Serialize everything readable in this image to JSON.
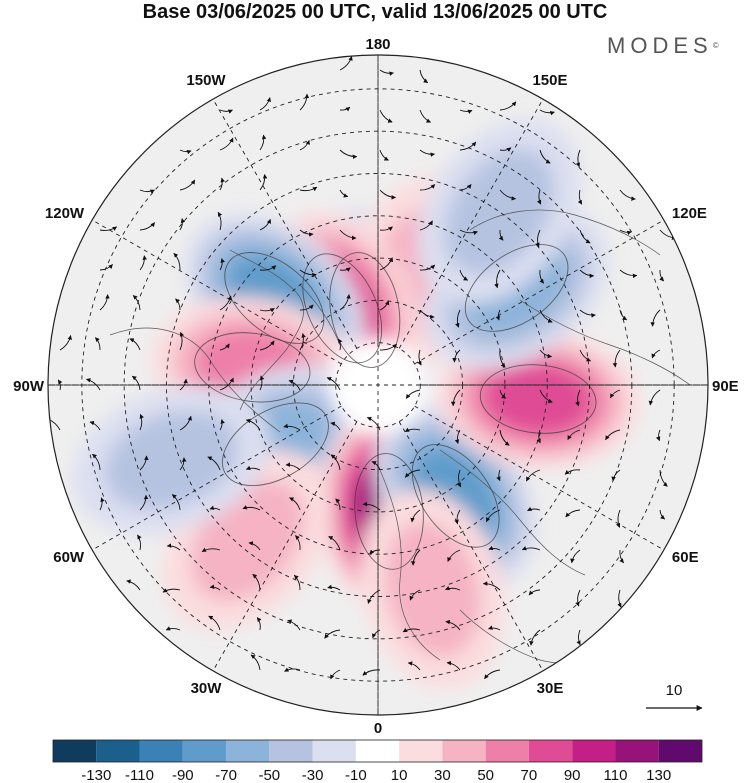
{
  "title": "Base 03/06/2025 00 UTC, valid 13/06/2025 00 UTC",
  "logo": "MODES",
  "logo_mark": "©",
  "longitude_labels": [
    {
      "text": "180",
      "lon": 180
    },
    {
      "text": "150E",
      "lon": 150
    },
    {
      "text": "120E",
      "lon": 120
    },
    {
      "text": "90E",
      "lon": 90
    },
    {
      "text": "60E",
      "lon": 60
    },
    {
      "text": "30E",
      "lon": 30
    },
    {
      "text": "0",
      "lon": 0
    },
    {
      "text": "30W",
      "lon": -30
    },
    {
      "text": "60W",
      "lon": -60
    },
    {
      "text": "90W",
      "lon": -90
    },
    {
      "text": "120W",
      "lon": -120
    },
    {
      "text": "150W",
      "lon": -150
    }
  ],
  "vector_reference_label": "10",
  "colorbar": {
    "ticks": [
      "-130",
      "-110",
      "-90",
      "-70",
      "-50",
      "-30",
      "-10",
      "10",
      "30",
      "50",
      "70",
      "90",
      "110",
      "130"
    ],
    "colors": [
      "#0e3b5e",
      "#1b5f8d",
      "#3a82b5",
      "#5f9ccb",
      "#8cb3da",
      "#b5c3e1",
      "#dcdff0",
      "#ffffff",
      "#fbdddf",
      "#f5b3c3",
      "#ee7fa8",
      "#e04b95",
      "#c41f86",
      "#971279",
      "#600a6d"
    ]
  },
  "anomaly_centers": [
    {
      "lat": 72,
      "lon": -170,
      "value": -55
    },
    {
      "lat": 62,
      "lon": 160,
      "value": 30
    },
    {
      "lat": 70,
      "lon": -155,
      "value": 70
    },
    {
      "lat": 58,
      "lon": -130,
      "value": -70
    },
    {
      "lat": 60,
      "lon": -98,
      "value": 55
    },
    {
      "lat": 62,
      "lon": -60,
      "value": -50
    },
    {
      "lat": 60,
      "lon": 5,
      "value": 110
    },
    {
      "lat": 58,
      "lon": 35,
      "value": -60
    },
    {
      "lat": 52,
      "lon": 85,
      "value": 60
    },
    {
      "lat": 50,
      "lon": 125,
      "value": -55
    },
    {
      "lat": 42,
      "lon": -40,
      "value": 25
    },
    {
      "lat": 40,
      "lon": 15,
      "value": 35
    },
    {
      "lat": 38,
      "lon": -70,
      "value": -30
    },
    {
      "lat": 40,
      "lon": 145,
      "value": -20
    }
  ]
}
